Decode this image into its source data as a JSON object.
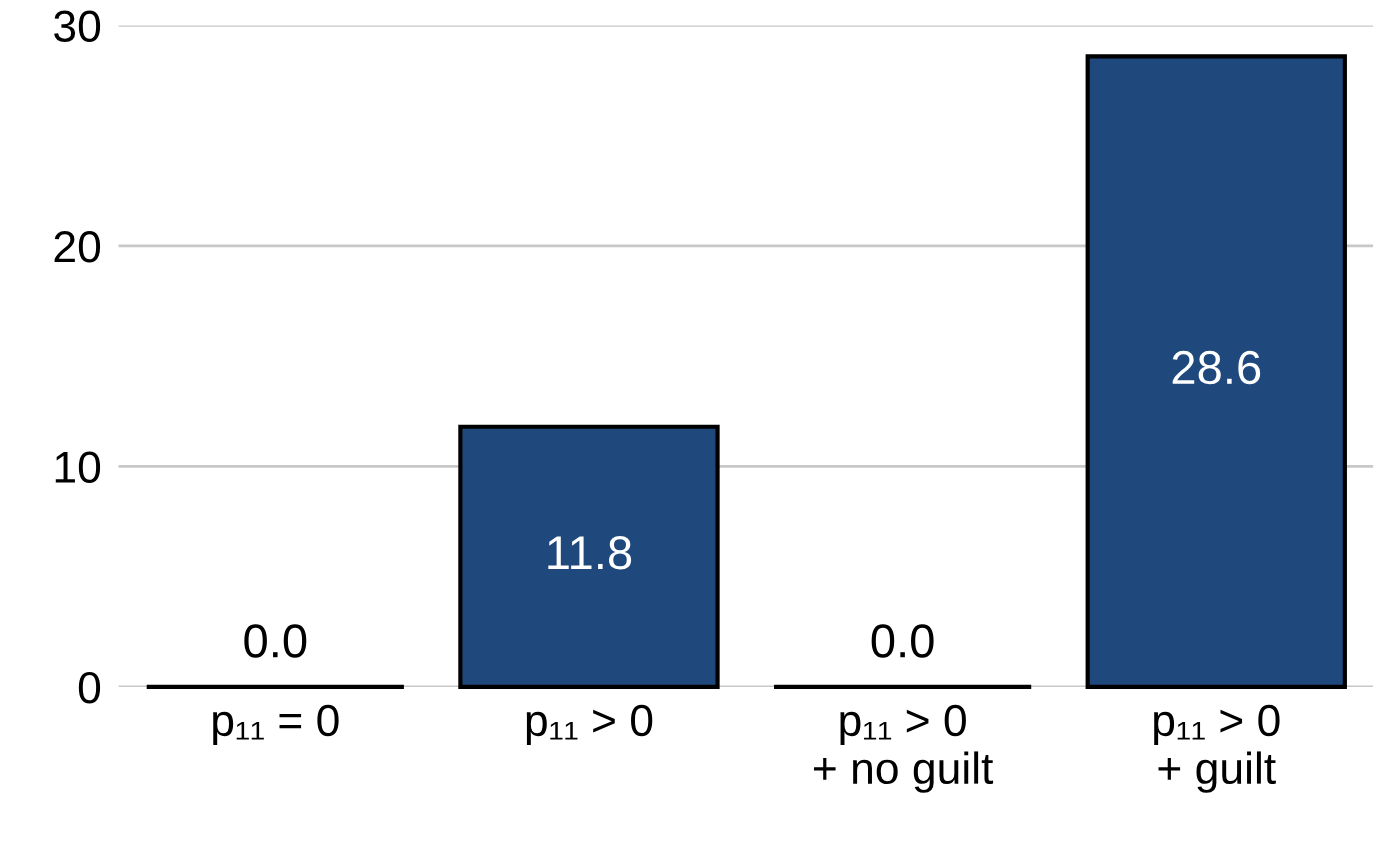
{
  "chart_data": {
    "type": "bar",
    "categories": [
      "p₁₁ = 0",
      "p₁₁ > 0",
      "p₁₁ > 0\n+ no guilt",
      "p₁₁ > 0\n+ guilt"
    ],
    "values": [
      0.0,
      11.8,
      0.0,
      28.6
    ],
    "value_labels": [
      "0.0",
      "11.8",
      "0.0",
      "28.6"
    ],
    "colors": [
      "#000000",
      "#1f497d",
      "#000000",
      "#1f497d"
    ],
    "ylim": [
      0,
      30
    ],
    "yticks": [
      0,
      10,
      20,
      30
    ],
    "grid": "y",
    "legend": false
  }
}
